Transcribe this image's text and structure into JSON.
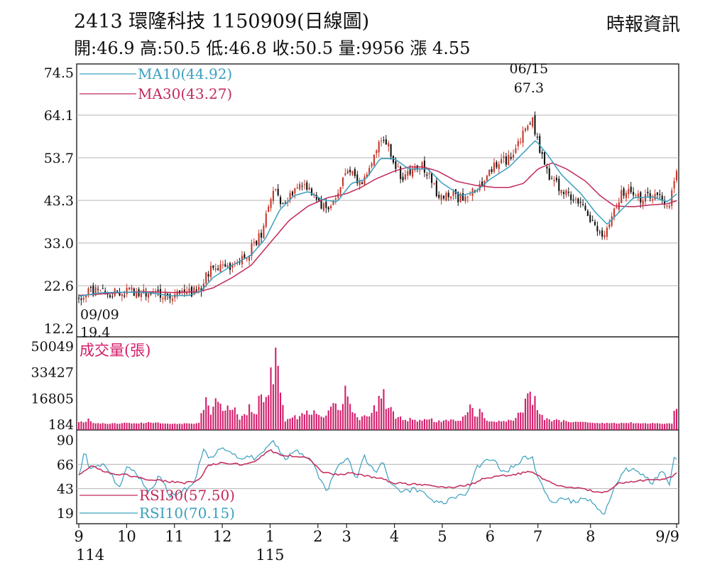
{
  "header": {
    "title": "2413 環隆科技 1150909(日線圖)",
    "source": "時報資訊",
    "ohlc_line": "開:46.9 高:50.5 低:46.8 收:50.5 量:9956 漲 4.55"
  },
  "colors": {
    "up": "#c7382c",
    "down": "#111111",
    "ma10": "#3a9fbf",
    "ma30": "#c22a5a",
    "volume": "#d21e6b",
    "rsi30": "#c22a5a",
    "rsi10": "#3a9fbf",
    "grid": "#b5b5b5",
    "text": "#111111"
  },
  "chart_data": [
    {
      "type": "candlestick",
      "panel": "price",
      "ylim": [
        12.2,
        74.5
      ],
      "y_ticks": [
        "74.5",
        "64.1",
        "53.7",
        "43.3",
        "33.0",
        "22.6",
        "12.2"
      ],
      "legend": [
        {
          "key": "ma10",
          "label": "MA10(44.92)"
        },
        {
          "key": "ma30",
          "label": "MA30(43.27)"
        }
      ],
      "annotations": [
        {
          "label_top": "06/15",
          "label_bottom": "67.3",
          "month_pos": 9.47,
          "y": 67.3
        },
        {
          "label_top": "09/09",
          "label_bottom": "19.4",
          "month_pos": 0.0,
          "y": 19.4
        }
      ],
      "close_keypoints": [
        [
          0,
          19.6
        ],
        [
          0.1,
          20.4
        ],
        [
          0.25,
          21.2
        ],
        [
          0.5,
          21.3
        ],
        [
          0.7,
          20.6
        ],
        [
          0.9,
          21.0
        ],
        [
          1.2,
          21.1
        ],
        [
          1.5,
          21.1
        ],
        [
          1.75,
          20.4
        ],
        [
          1.9,
          19.8
        ],
        [
          2.2,
          20.6
        ],
        [
          2.55,
          21.5
        ],
        [
          2.65,
          25
        ],
        [
          2.8,
          27
        ],
        [
          3.0,
          28
        ],
        [
          3.15,
          27
        ],
        [
          3.3,
          28.5
        ],
        [
          3.5,
          30
        ],
        [
          3.7,
          33
        ],
        [
          3.85,
          36
        ],
        [
          3.95,
          41
        ],
        [
          4.05,
          46
        ],
        [
          4.15,
          45
        ],
        [
          4.25,
          42
        ],
        [
          4.45,
          45.5
        ],
        [
          4.65,
          47.5
        ],
        [
          4.8,
          45.5
        ],
        [
          4.95,
          44.5
        ],
        [
          5.05,
          42
        ],
        [
          5.2,
          41
        ],
        [
          5.35,
          43
        ],
        [
          5.45,
          45
        ],
        [
          5.55,
          50
        ],
        [
          5.65,
          52
        ],
        [
          5.75,
          49
        ],
        [
          5.85,
          47
        ],
        [
          5.95,
          48
        ],
        [
          6.05,
          51
        ],
        [
          6.15,
          53.5
        ],
        [
          6.25,
          56
        ],
        [
          6.35,
          58
        ],
        [
          6.45,
          57
        ],
        [
          6.55,
          54
        ],
        [
          6.65,
          51
        ],
        [
          6.75,
          49
        ],
        [
          6.9,
          50
        ],
        [
          7.05,
          51
        ],
        [
          7.15,
          52
        ],
        [
          7.25,
          50.5
        ],
        [
          7.35,
          49
        ],
        [
          7.45,
          46
        ],
        [
          7.55,
          44
        ],
        [
          7.7,
          44
        ],
        [
          7.85,
          44.5
        ],
        [
          7.95,
          44
        ],
        [
          8.05,
          44
        ],
        [
          8.15,
          44.5
        ],
        [
          8.3,
          46
        ],
        [
          8.45,
          48
        ],
        [
          8.6,
          51
        ],
        [
          8.75,
          52
        ],
        [
          8.9,
          53
        ],
        [
          9.05,
          54
        ],
        [
          9.2,
          57
        ],
        [
          9.3,
          60
        ],
        [
          9.4,
          62
        ],
        [
          9.47,
          64
        ],
        [
          9.55,
          59
        ],
        [
          9.65,
          55
        ],
        [
          9.75,
          52
        ],
        [
          9.85,
          48
        ],
        [
          10.0,
          47
        ],
        [
          10.15,
          46
        ],
        [
          10.3,
          44
        ],
        [
          10.45,
          43
        ],
        [
          10.6,
          40
        ],
        [
          10.75,
          38
        ],
        [
          10.9,
          36
        ],
        [
          10.98,
          35
        ],
        [
          11.08,
          38
        ],
        [
          11.2,
          41
        ],
        [
          11.35,
          45
        ],
        [
          11.5,
          46
        ],
        [
          11.6,
          45
        ],
        [
          11.75,
          44
        ],
        [
          11.9,
          44
        ],
        [
          12.05,
          44
        ],
        [
          12.2,
          43.5
        ],
        [
          12.35,
          42.5
        ],
        [
          12.45,
          47
        ],
        [
          12.5,
          50.5
        ]
      ],
      "ma10_keypoints": [
        [
          0,
          20
        ],
        [
          0.5,
          20.9
        ],
        [
          1.0,
          21
        ],
        [
          1.5,
          20.9
        ],
        [
          1.9,
          20.1
        ],
        [
          2.3,
          20.2
        ],
        [
          2.55,
          21.2
        ],
        [
          2.8,
          24.5
        ],
        [
          3.2,
          27.5
        ],
        [
          3.6,
          30
        ],
        [
          3.9,
          34
        ],
        [
          4.2,
          41
        ],
        [
          4.5,
          44.5
        ],
        [
          4.8,
          45.5
        ],
        [
          5.1,
          43.5
        ],
        [
          5.4,
          43
        ],
        [
          5.7,
          47.5
        ],
        [
          6.0,
          48.5
        ],
        [
          6.3,
          53.5
        ],
        [
          6.6,
          53.5
        ],
        [
          6.9,
          51
        ],
        [
          7.3,
          51
        ],
        [
          7.6,
          47.5
        ],
        [
          8.0,
          44.5
        ],
        [
          8.3,
          45.5
        ],
        [
          8.6,
          48.5
        ],
        [
          9.0,
          51.5
        ],
        [
          9.3,
          55
        ],
        [
          9.55,
          58
        ],
        [
          9.8,
          54.5
        ],
        [
          10.1,
          49.5
        ],
        [
          10.5,
          45
        ],
        [
          10.8,
          40.5
        ],
        [
          11.05,
          37.5
        ],
        [
          11.3,
          40.5
        ],
        [
          11.6,
          44
        ],
        [
          12.0,
          44.2
        ],
        [
          12.3,
          43
        ],
        [
          12.5,
          44.9
        ]
      ],
      "ma30_keypoints": [
        [
          0,
          20.2
        ],
        [
          0.5,
          20.6
        ],
        [
          1.0,
          21
        ],
        [
          1.5,
          21.1
        ],
        [
          2.0,
          20.9
        ],
        [
          2.5,
          21.1
        ],
        [
          2.8,
          22
        ],
        [
          3.2,
          24.5
        ],
        [
          3.6,
          27.5
        ],
        [
          4.0,
          33
        ],
        [
          4.4,
          38.5
        ],
        [
          4.8,
          42
        ],
        [
          5.2,
          44
        ],
        [
          5.6,
          45
        ],
        [
          5.9,
          46.5
        ],
        [
          6.2,
          48.5
        ],
        [
          6.6,
          50.5
        ],
        [
          6.9,
          51.5
        ],
        [
          7.2,
          51.5
        ],
        [
          7.5,
          50.5
        ],
        [
          7.9,
          48
        ],
        [
          8.3,
          47
        ],
        [
          8.7,
          46.5
        ],
        [
          9.0,
          46.5
        ],
        [
          9.3,
          47.5
        ],
        [
          9.6,
          51
        ],
        [
          9.9,
          52.5
        ],
        [
          10.2,
          51
        ],
        [
          10.6,
          48
        ],
        [
          10.9,
          44.5
        ],
        [
          11.2,
          42
        ],
        [
          11.6,
          41.8
        ],
        [
          12.0,
          42.3
        ],
        [
          12.3,
          42.5
        ],
        [
          12.5,
          43.27
        ]
      ]
    },
    {
      "type": "bar",
      "panel": "volume",
      "title": "成交量(張)",
      "ylim": [
        184,
        50049
      ],
      "y_ticks": [
        "50049",
        "33427",
        "16805",
        "184"
      ],
      "keypoints": [
        [
          0,
          1500
        ],
        [
          0.2,
          3500
        ],
        [
          0.35,
          1000
        ],
        [
          0.6,
          600
        ],
        [
          0.9,
          1200
        ],
        [
          1.2,
          600
        ],
        [
          1.5,
          1800
        ],
        [
          1.8,
          600
        ],
        [
          2.2,
          700
        ],
        [
          2.5,
          800
        ],
        [
          2.65,
          16000
        ],
        [
          2.75,
          10000
        ],
        [
          2.85,
          22000
        ],
        [
          3.0,
          8000
        ],
        [
          3.15,
          16000
        ],
        [
          3.35,
          6000
        ],
        [
          3.55,
          12000
        ],
        [
          3.7,
          10000
        ],
        [
          3.8,
          40000
        ],
        [
          3.85,
          18000
        ],
        [
          3.95,
          20000
        ],
        [
          4.05,
          41000
        ],
        [
          4.1,
          49000
        ],
        [
          4.15,
          38000
        ],
        [
          4.3,
          3000
        ],
        [
          4.5,
          6000
        ],
        [
          4.7,
          8000
        ],
        [
          4.85,
          12000
        ],
        [
          5.0,
          5000
        ],
        [
          5.2,
          7000
        ],
        [
          5.3,
          18000
        ],
        [
          5.45,
          8000
        ],
        [
          5.55,
          20000
        ],
        [
          5.6,
          30000
        ],
        [
          5.7,
          12000
        ],
        [
          5.85,
          5000
        ],
        [
          6.1,
          5000
        ],
        [
          6.25,
          16000
        ],
        [
          6.35,
          27000
        ],
        [
          6.45,
          14000
        ],
        [
          6.6,
          6000
        ],
        [
          6.8,
          5000
        ],
        [
          7.0,
          3000
        ],
        [
          7.3,
          4000
        ],
        [
          7.5,
          2500
        ],
        [
          7.9,
          3500
        ],
        [
          8.1,
          7000
        ],
        [
          8.2,
          12000
        ],
        [
          8.35,
          10000
        ],
        [
          8.5,
          4000
        ],
        [
          8.9,
          2500
        ],
        [
          9.1,
          5000
        ],
        [
          9.3,
          10000
        ],
        [
          9.4,
          24000
        ],
        [
          9.47,
          26000
        ],
        [
          9.6,
          14000
        ],
        [
          9.75,
          4000
        ],
        [
          10.0,
          3000
        ],
        [
          10.5,
          1500
        ],
        [
          11.0,
          1000
        ],
        [
          11.5,
          1400
        ],
        [
          12.0,
          900
        ],
        [
          12.4,
          1000
        ],
        [
          12.45,
          9000
        ],
        [
          12.5,
          9956
        ]
      ]
    },
    {
      "type": "line",
      "panel": "rsi",
      "ylim": [
        19,
        90
      ],
      "y_ticks": [
        "90",
        "66",
        "43",
        "19"
      ],
      "legend": [
        {
          "key": "rsi30",
          "label": "RSI30(57.50)"
        },
        {
          "key": "rsi10",
          "label": "RSI10(70.15)"
        }
      ],
      "rsi30_keypoints": [
        [
          0,
          57
        ],
        [
          0.3,
          65
        ],
        [
          0.6,
          58
        ],
        [
          1.0,
          56
        ],
        [
          1.4,
          52
        ],
        [
          1.8,
          50
        ],
        [
          2.2,
          48
        ],
        [
          2.5,
          50
        ],
        [
          2.7,
          65
        ],
        [
          3.0,
          68
        ],
        [
          3.4,
          66
        ],
        [
          3.7,
          70
        ],
        [
          4.0,
          80
        ],
        [
          4.2,
          76
        ],
        [
          4.5,
          74
        ],
        [
          4.8,
          72
        ],
        [
          5.1,
          59
        ],
        [
          5.4,
          56
        ],
        [
          5.7,
          58
        ],
        [
          6.0,
          55
        ],
        [
          6.3,
          53
        ],
        [
          6.6,
          48
        ],
        [
          7.0,
          47
        ],
        [
          7.4,
          45
        ],
        [
          7.8,
          44
        ],
        [
          8.2,
          47
        ],
        [
          8.5,
          53
        ],
        [
          8.8,
          55
        ],
        [
          9.1,
          56
        ],
        [
          9.47,
          60
        ],
        [
          9.7,
          52
        ],
        [
          10.0,
          46
        ],
        [
          10.4,
          43
        ],
        [
          10.8,
          40
        ],
        [
          11.0,
          39
        ],
        [
          11.3,
          48
        ],
        [
          11.6,
          50
        ],
        [
          12.0,
          51
        ],
        [
          12.3,
          52
        ],
        [
          12.5,
          57.5
        ]
      ],
      "rsi10_keypoints": [
        [
          0,
          55
        ],
        [
          0.12,
          78
        ],
        [
          0.25,
          60
        ],
        [
          0.45,
          66
        ],
        [
          0.6,
          62
        ],
        [
          0.85,
          42
        ],
        [
          1.0,
          65
        ],
        [
          1.2,
          58
        ],
        [
          1.45,
          40
        ],
        [
          1.7,
          55
        ],
        [
          1.9,
          35
        ],
        [
          2.2,
          42
        ],
        [
          2.4,
          45
        ],
        [
          2.6,
          80
        ],
        [
          2.8,
          70
        ],
        [
          3.0,
          85
        ],
        [
          3.2,
          76
        ],
        [
          3.4,
          72
        ],
        [
          3.7,
          73
        ],
        [
          3.9,
          82
        ],
        [
          4.05,
          88
        ],
        [
          4.15,
          85
        ],
        [
          4.3,
          70
        ],
        [
          4.5,
          80
        ],
        [
          4.7,
          75
        ],
        [
          4.9,
          68
        ],
        [
          5.05,
          50
        ],
        [
          5.2,
          40
        ],
        [
          5.3,
          55
        ],
        [
          5.5,
          70
        ],
        [
          5.65,
          70
        ],
        [
          5.8,
          52
        ],
        [
          5.95,
          75
        ],
        [
          6.2,
          58
        ],
        [
          6.35,
          70
        ],
        [
          6.5,
          50
        ],
        [
          6.7,
          40
        ],
        [
          7.0,
          42
        ],
        [
          7.3,
          35
        ],
        [
          7.5,
          28
        ],
        [
          7.7,
          30
        ],
        [
          7.9,
          35
        ],
        [
          8.1,
          38
        ],
        [
          8.3,
          62
        ],
        [
          8.5,
          70
        ],
        [
          8.7,
          68
        ],
        [
          8.9,
          58
        ],
        [
          9.1,
          65
        ],
        [
          9.3,
          72
        ],
        [
          9.47,
          75
        ],
        [
          9.6,
          52
        ],
        [
          9.9,
          28
        ],
        [
          10.1,
          35
        ],
        [
          10.4,
          28
        ],
        [
          10.6,
          35
        ],
        [
          10.85,
          22
        ],
        [
          11.0,
          19
        ],
        [
          11.2,
          43
        ],
        [
          11.4,
          62
        ],
        [
          11.6,
          60
        ],
        [
          11.8,
          55
        ],
        [
          12.0,
          48
        ],
        [
          12.2,
          60
        ],
        [
          12.35,
          45
        ],
        [
          12.45,
          72
        ],
        [
          12.5,
          70.15
        ]
      ]
    }
  ],
  "x_axis": {
    "months": [
      {
        "label": "9",
        "pos": 0
      },
      {
        "label": "10",
        "pos": 1
      },
      {
        "label": "11",
        "pos": 2
      },
      {
        "label": "12",
        "pos": 3
      },
      {
        "label": "1",
        "pos": 4
      },
      {
        "label": "2",
        "pos": 5
      },
      {
        "label": "3",
        "pos": 5.6
      },
      {
        "label": "4",
        "pos": 6.6
      },
      {
        "label": "5",
        "pos": 7.6
      },
      {
        "label": "6",
        "pos": 8.6
      },
      {
        "label": "7",
        "pos": 9.6
      },
      {
        "label": "8",
        "pos": 10.7
      },
      {
        "label": "9/9",
        "pos": 12.5
      }
    ],
    "years": [
      {
        "label": "114",
        "pos": 0
      },
      {
        "label": "115",
        "pos": 4
      }
    ]
  }
}
